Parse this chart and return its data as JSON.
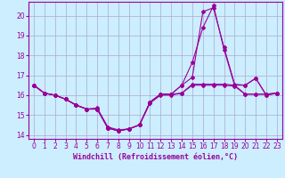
{
  "xlabel": "Windchill (Refroidissement éolien,°C)",
  "background_color": "#cceeff",
  "grid_color": "#aaaacc",
  "line_color": "#990099",
  "x_values": [
    0,
    1,
    2,
    3,
    4,
    5,
    6,
    7,
    8,
    9,
    10,
    11,
    12,
    13,
    14,
    15,
    16,
    17,
    18,
    19,
    20,
    21,
    22,
    23
  ],
  "series": [
    [
      16.5,
      16.1,
      16.0,
      15.8,
      15.5,
      15.3,
      15.3,
      14.35,
      14.2,
      14.3,
      14.5,
      15.6,
      16.0,
      16.0,
      16.1,
      16.5,
      16.5,
      16.5,
      16.5,
      16.45,
      16.05,
      16.05,
      16.05,
      16.1
    ],
    [
      16.5,
      16.1,
      16.0,
      15.8,
      15.5,
      15.3,
      15.35,
      14.4,
      14.25,
      14.3,
      14.5,
      15.65,
      16.05,
      16.05,
      16.1,
      16.55,
      16.55,
      16.55,
      16.55,
      16.5,
      16.05,
      16.05,
      16.05,
      16.1
    ],
    [
      16.5,
      16.1,
      16.0,
      15.8,
      15.5,
      15.3,
      15.3,
      14.35,
      14.2,
      14.3,
      14.5,
      15.65,
      16.05,
      16.05,
      16.5,
      16.9,
      20.2,
      20.4,
      18.4,
      16.55,
      16.5,
      16.85,
      16.0,
      16.1
    ],
    [
      16.5,
      16.1,
      16.0,
      15.8,
      15.5,
      15.3,
      15.3,
      14.35,
      14.2,
      14.3,
      14.5,
      15.65,
      16.05,
      16.05,
      16.5,
      17.65,
      19.4,
      20.5,
      18.3,
      16.5,
      16.5,
      16.85,
      16.0,
      16.1
    ]
  ],
  "ylim": [
    13.8,
    20.7
  ],
  "yticks": [
    14,
    15,
    16,
    17,
    18,
    19,
    20
  ],
  "xticks": [
    0,
    1,
    2,
    3,
    4,
    5,
    6,
    7,
    8,
    9,
    10,
    11,
    12,
    13,
    14,
    15,
    16,
    17,
    18,
    19,
    20,
    21,
    22,
    23
  ],
  "marker": "D",
  "markersize": 2.0,
  "linewidth": 0.8,
  "tick_fontsize": 5.5,
  "label_fontsize": 6.0
}
